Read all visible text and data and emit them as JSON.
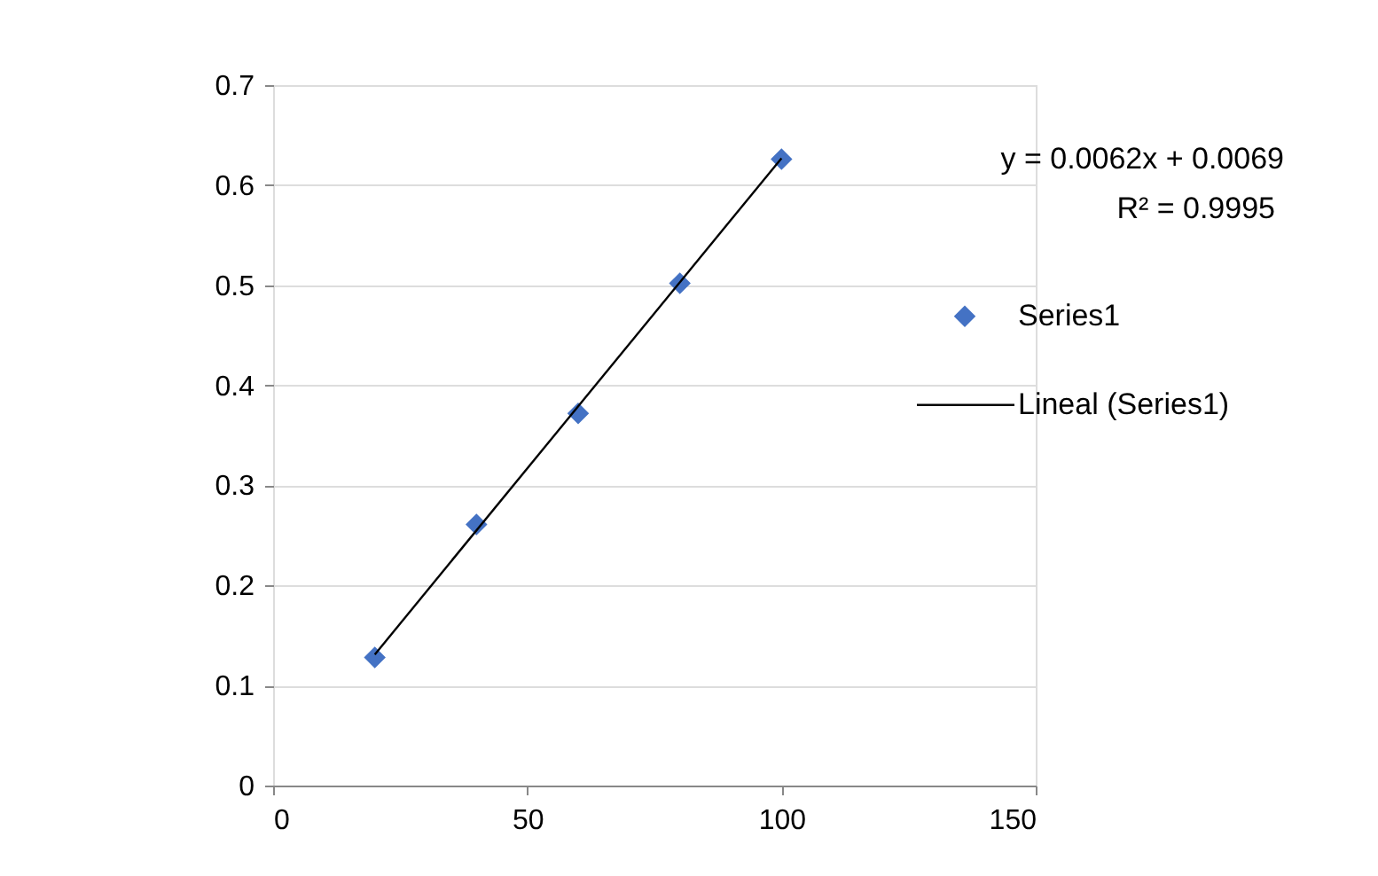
{
  "chart_data": {
    "type": "scatter",
    "xlim": [
      0,
      150
    ],
    "xticks": [
      0,
      50,
      100,
      150
    ],
    "ylim": [
      0,
      0.7
    ],
    "yticks": [
      0,
      0.1,
      0.2,
      0.3,
      0.4,
      0.5,
      0.6,
      0.7
    ],
    "grid": "y",
    "legend": "right",
    "annotations": [
      "y = 0.0062x + 0.0069",
      "R² = 0.9995"
    ],
    "series": [
      {
        "name": "Series1",
        "marker": "diamond",
        "color": "#4472c4",
        "x": [
          20,
          40,
          60,
          80,
          100
        ],
        "values": [
          0.128,
          0.261,
          0.372,
          0.502,
          0.626
        ]
      },
      {
        "name": "Lineal (Series1)",
        "type": "line",
        "color": "#000000",
        "line_style": "solid",
        "x": [
          20,
          100
        ],
        "values": [
          0.131,
          0.627
        ]
      }
    ]
  }
}
